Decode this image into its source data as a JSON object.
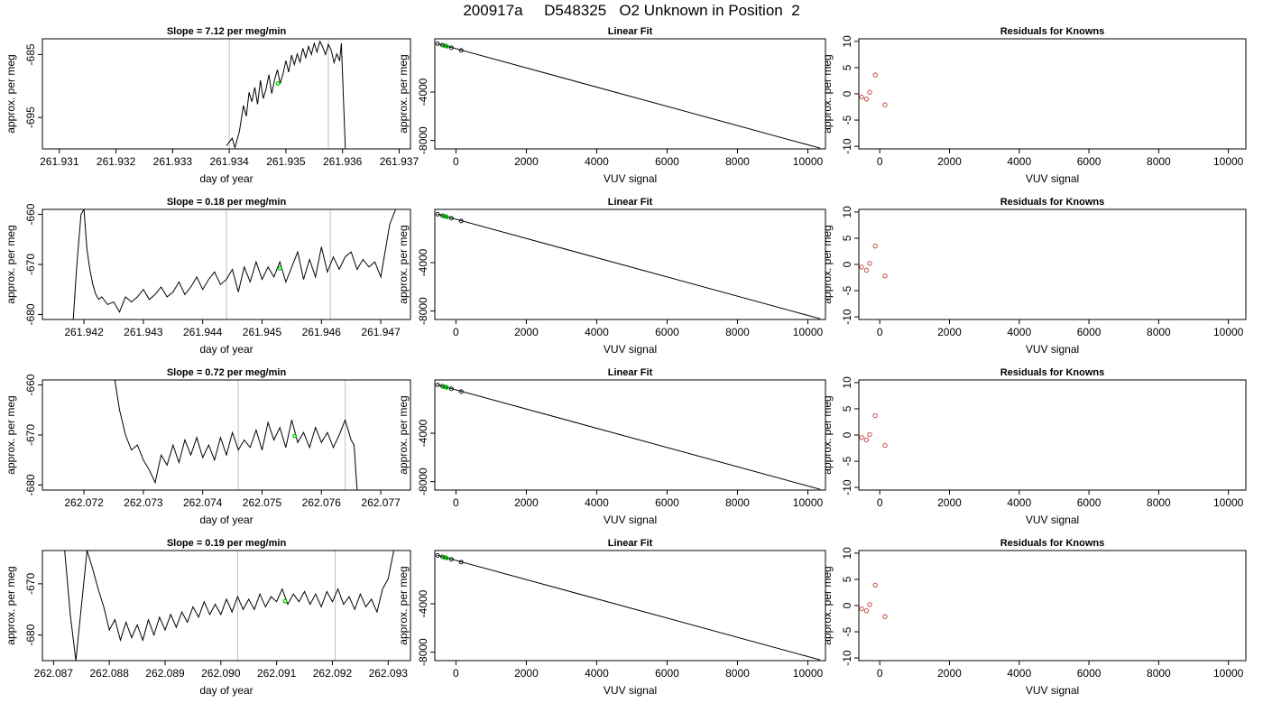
{
  "figure": {
    "title": "200917a     D548325   O2 Unknown in Position  2"
  },
  "colors": {
    "trace": "#000000",
    "marker_lines": "#bebebe",
    "highlight": "#00cc00",
    "residual_points": "#c0392b"
  },
  "chart_data": [
    {
      "type": "line",
      "row": 0,
      "col": 0,
      "title": "Slope =  7.12  per meg/min",
      "xlabel": "day of year",
      "ylabel": "approx. per meg",
      "xlim": [
        261.9307,
        261.9372
      ],
      "ylim": [
        -700,
        -682.5
      ],
      "xticks": [
        261.931,
        261.932,
        261.933,
        261.934,
        261.935,
        261.936,
        261.937
      ],
      "xtick_labels": [
        "261.931",
        "261.932",
        "261.933",
        "261.934",
        "261.935",
        "261.936",
        "261.937"
      ],
      "yticks": [
        -685,
        -695
      ],
      "ytick_labels": [
        "-685",
        "-695"
      ],
      "vlines": [
        261.934,
        261.93575
      ],
      "x": [
        261.93395,
        261.93405,
        261.9341,
        261.93418,
        261.93425,
        261.9343,
        261.93435,
        261.9344,
        261.93445,
        261.9345,
        261.93455,
        261.9346,
        261.93465,
        261.9347,
        261.93475,
        261.9348,
        261.93485,
        261.9349,
        261.93495,
        261.935,
        261.93505,
        261.9351,
        261.93515,
        261.9352,
        261.93525,
        261.9353,
        261.93535,
        261.9354,
        261.93545,
        261.9355,
        261.93555,
        261.9356,
        261.93565,
        261.9357,
        261.93575,
        261.9358,
        261.93585,
        261.9359,
        261.93595,
        261.93598,
        261.93605
      ],
      "y": [
        -699.5,
        -698.3,
        -699.8,
        -697.2,
        -693.1,
        -694.8,
        -691.0,
        -692.5,
        -690.2,
        -692.9,
        -689.1,
        -692.0,
        -690.5,
        -688.2,
        -691.2,
        -689.0,
        -687.4,
        -689.6,
        -688.0,
        -686.0,
        -687.8,
        -685.1,
        -686.6,
        -684.9,
        -686.2,
        -684.0,
        -685.5,
        -683.7,
        -685.0,
        -683.2,
        -684.6,
        -682.9,
        -683.8,
        -685.0,
        -683.4,
        -684.3,
        -686.3,
        -684.9,
        -686.0,
        -683.2,
        -700
      ],
      "highlight": {
        "x": [
          261.93486
        ],
        "y": [
          -689.6
        ]
      }
    },
    {
      "type": "line",
      "row": 0,
      "col": 1,
      "title": "Linear Fit",
      "xlabel": "VUV signal",
      "ylabel": "approx. per meg",
      "xlim": [
        -600,
        10500
      ],
      "ylim": [
        -8700,
        400
      ],
      "xticks": [
        0,
        2000,
        4000,
        6000,
        8000,
        10000
      ],
      "xtick_labels": [
        "0",
        "2000",
        "4000",
        "6000",
        "8000",
        "10000"
      ],
      "yticks": [
        -4000,
        -8000
      ],
      "ytick_labels": [
        "-4000",
        "-8000"
      ],
      "line": {
        "x": [
          -520,
          10350
        ],
        "y": [
          0,
          -8640
        ]
      },
      "points": {
        "x": [
          -520,
          -380,
          -290,
          -130,
          150
        ],
        "y": [
          -5,
          -120,
          -190,
          -330,
          -560
        ]
      },
      "highlight": {
        "x": [
          -330,
          -260
        ],
        "y": [
          -170,
          -230
        ]
      }
    },
    {
      "type": "scatter",
      "row": 0,
      "col": 2,
      "title": "Residuals for Knowns",
      "xlabel": "VUV signal",
      "ylabel": "approx. per meg",
      "xlim": [
        -600,
        10500
      ],
      "ylim": [
        -10.5,
        10.5
      ],
      "xticks": [
        0,
        2000,
        4000,
        6000,
        8000,
        10000
      ],
      "xtick_labels": [
        "0",
        "2000",
        "4000",
        "6000",
        "8000",
        "10000"
      ],
      "yticks": [
        10,
        5,
        0,
        -5,
        -10
      ],
      "ytick_labels": [
        "10",
        "5",
        "0",
        "-5",
        "-10"
      ],
      "points": {
        "x": [
          -520,
          -380,
          -290,
          -130,
          150
        ],
        "y": [
          -0.6,
          -1.0,
          0.3,
          3.6,
          -2.1
        ]
      }
    },
    {
      "type": "line",
      "row": 1,
      "col": 0,
      "title": "Slope =  0.18  per meg/min",
      "xlabel": "day of year",
      "ylabel": "approx. per meg",
      "xlim": [
        261.9413,
        261.9475
      ],
      "ylim": [
        -681,
        -659
      ],
      "xticks": [
        261.942,
        261.943,
        261.944,
        261.945,
        261.946,
        261.947
      ],
      "xtick_labels": [
        "261.942",
        "261.943",
        "261.944",
        "261.945",
        "261.946",
        "261.947"
      ],
      "yticks": [
        -660,
        -670,
        -680
      ],
      "ytick_labels": [
        "-660",
        "-670",
        "-680"
      ],
      "vlines": [
        261.9444,
        261.94615
      ],
      "x": [
        261.94182,
        261.94188,
        261.94195,
        261.942,
        261.94205,
        261.9421,
        261.94215,
        261.9422,
        261.94225,
        261.9423,
        261.9424,
        261.9425,
        261.9426,
        261.9427,
        261.9428,
        261.9429,
        261.943,
        261.9431,
        261.9432,
        261.9433,
        261.9434,
        261.9435,
        261.9436,
        261.9437,
        261.9438,
        261.9439,
        261.944,
        261.9441,
        261.9442,
        261.9443,
        261.9444,
        261.9445,
        261.9446,
        261.9447,
        261.9448,
        261.9449,
        261.945,
        261.9451,
        261.9452,
        261.9453,
        261.9454,
        261.9455,
        261.9456,
        261.9457,
        261.9458,
        261.9459,
        261.946,
        261.9461,
        261.9462,
        261.9463,
        261.9464,
        261.9465,
        261.9466,
        261.9467,
        261.9468,
        261.9469,
        261.947,
        261.94705,
        261.94715,
        261.94725
      ],
      "y": [
        -681,
        -670,
        -660,
        -659,
        -667,
        -671,
        -674,
        -676,
        -677,
        -676.5,
        -678,
        -677.5,
        -679.5,
        -676.5,
        -677.5,
        -676.5,
        -675,
        -677,
        -676,
        -674.5,
        -676.5,
        -675.5,
        -673.5,
        -676,
        -674.5,
        -672.5,
        -675,
        -673,
        -671.5,
        -674,
        -673,
        -671,
        -675.5,
        -670.5,
        -673.5,
        -669.5,
        -673,
        -670.5,
        -672.5,
        -669.5,
        -673.5,
        -670.5,
        -667.5,
        -673,
        -669,
        -672.5,
        -666.5,
        -671.5,
        -668.5,
        -671,
        -668.5,
        -667.5,
        -671,
        -669,
        -670.5,
        -669.5,
        -672.5,
        -669,
        -662,
        -659
      ],
      "highlight": {
        "x": [
          261.9453
        ],
        "y": [
          -670.8
        ]
      }
    },
    {
      "type": "line",
      "row": 1,
      "col": 1,
      "title": "Linear Fit",
      "xlabel": "VUV signal",
      "ylabel": "approx. per meg",
      "xlim": [
        -600,
        10500
      ],
      "ylim": [
        -8700,
        400
      ],
      "xticks": [
        0,
        2000,
        4000,
        6000,
        8000,
        10000
      ],
      "xtick_labels": [
        "0",
        "2000",
        "4000",
        "6000",
        "8000",
        "10000"
      ],
      "yticks": [
        -4000,
        -8000
      ],
      "ytick_labels": [
        "-4000",
        "-8000"
      ],
      "line": {
        "x": [
          -520,
          10350
        ],
        "y": [
          0,
          -8640
        ]
      },
      "points": {
        "x": [
          -520,
          -380,
          -290,
          -130,
          150
        ],
        "y": [
          -5,
          -120,
          -190,
          -330,
          -560
        ]
      },
      "highlight": {
        "x": [
          -330,
          -260
        ],
        "y": [
          -170,
          -230
        ]
      }
    },
    {
      "type": "scatter",
      "row": 1,
      "col": 2,
      "title": "Residuals for Knowns",
      "xlabel": "VUV signal",
      "ylabel": "approx. per meg",
      "xlim": [
        -600,
        10500
      ],
      "ylim": [
        -10.5,
        10.5
      ],
      "xticks": [
        0,
        2000,
        4000,
        6000,
        8000,
        10000
      ],
      "xtick_labels": [
        "0",
        "2000",
        "4000",
        "6000",
        "8000",
        "10000"
      ],
      "yticks": [
        10,
        5,
        0,
        -5,
        -10
      ],
      "ytick_labels": [
        "10",
        "5",
        "0",
        "-5",
        "-10"
      ],
      "points": {
        "x": [
          -520,
          -380,
          -290,
          -130,
          150
        ],
        "y": [
          -0.5,
          -1.1,
          0.2,
          3.5,
          -2.2
        ]
      }
    },
    {
      "type": "line",
      "row": 2,
      "col": 0,
      "title": "Slope =  0.72  per meg/min",
      "xlabel": "day of year",
      "ylabel": "approx. per meg",
      "xlim": [
        262.0713,
        262.0775
      ],
      "ylim": [
        -681,
        -659
      ],
      "xticks": [
        262.072,
        262.073,
        262.074,
        262.075,
        262.076,
        262.077
      ],
      "xtick_labels": [
        "262.072",
        "262.073",
        "262.074",
        "262.075",
        "262.076",
        "262.077"
      ],
      "yticks": [
        -660,
        -670,
        -680
      ],
      "ytick_labels": [
        "-660",
        "-670",
        "-680"
      ],
      "vlines": [
        262.0746,
        262.0764
      ],
      "x": [
        262.07252,
        262.0726,
        262.0727,
        262.0728,
        262.0729,
        262.073,
        262.0731,
        262.0732,
        262.0733,
        262.0734,
        262.0735,
        262.0736,
        262.0737,
        262.0738,
        262.0739,
        262.074,
        262.0741,
        262.0742,
        262.0743,
        262.0744,
        262.0745,
        262.0746,
        262.0747,
        262.0748,
        262.0749,
        262.075,
        262.0751,
        262.0752,
        262.0753,
        262.0754,
        262.0755,
        262.0756,
        262.0757,
        262.0758,
        262.0759,
        262.076,
        262.0761,
        262.0762,
        262.0763,
        262.0764,
        262.0765,
        262.07655,
        262.0766
      ],
      "y": [
        -659,
        -665,
        -670,
        -673,
        -672,
        -675,
        -677,
        -679.5,
        -674,
        -676,
        -672,
        -675.5,
        -671,
        -674,
        -670.5,
        -674.5,
        -672,
        -675,
        -670.5,
        -674,
        -669.5,
        -673,
        -671,
        -672.5,
        -669,
        -673,
        -667.5,
        -671,
        -668.5,
        -672.5,
        -667,
        -671.5,
        -669.5,
        -672.5,
        -668.5,
        -671.5,
        -669.5,
        -672.5,
        -670,
        -667,
        -671,
        -672,
        -681
      ],
      "highlight": {
        "x": [
          262.07555
        ],
        "y": [
          -670.2
        ]
      }
    },
    {
      "type": "line",
      "row": 2,
      "col": 1,
      "title": "Linear Fit",
      "xlabel": "VUV signal",
      "ylabel": "approx. per meg",
      "xlim": [
        -600,
        10500
      ],
      "ylim": [
        -8700,
        400
      ],
      "xticks": [
        0,
        2000,
        4000,
        6000,
        8000,
        10000
      ],
      "xtick_labels": [
        "0",
        "2000",
        "4000",
        "6000",
        "8000",
        "10000"
      ],
      "yticks": [
        -4000,
        -8000
      ],
      "ytick_labels": [
        "-4000",
        "-8000"
      ],
      "line": {
        "x": [
          -520,
          10350
        ],
        "y": [
          0,
          -8640
        ]
      },
      "points": {
        "x": [
          -520,
          -380,
          -290,
          -130,
          150
        ],
        "y": [
          -5,
          -120,
          -190,
          -330,
          -560
        ]
      },
      "highlight": {
        "x": [
          -330,
          -260
        ],
        "y": [
          -170,
          -230
        ]
      }
    },
    {
      "type": "scatter",
      "row": 2,
      "col": 2,
      "title": "Residuals for Knowns",
      "xlabel": "VUV signal",
      "ylabel": "approx. per meg",
      "xlim": [
        -600,
        10500
      ],
      "ylim": [
        -10.5,
        10.5
      ],
      "xticks": [
        0,
        2000,
        4000,
        6000,
        8000,
        10000
      ],
      "xtick_labels": [
        "0",
        "2000",
        "4000",
        "6000",
        "8000",
        "10000"
      ],
      "yticks": [
        10,
        5,
        0,
        -5,
        -10
      ],
      "ytick_labels": [
        "10",
        "5",
        "0",
        "-5",
        "-10"
      ],
      "points": {
        "x": [
          -520,
          -380,
          -290,
          -130,
          150
        ],
        "y": [
          -0.5,
          -0.9,
          0.1,
          3.7,
          -2.0
        ]
      }
    },
    {
      "type": "line",
      "row": 3,
      "col": 0,
      "title": "Slope =  0.19  per meg/min",
      "xlabel": "day of year",
      "ylabel": "approx. per meg",
      "xlim": [
        262.0868,
        262.0934
      ],
      "ylim": [
        -685,
        -663.5
      ],
      "xticks": [
        262.087,
        262.088,
        262.089,
        262.09,
        262.091,
        262.092,
        262.093
      ],
      "xtick_labels": [
        "262.087",
        "262.088",
        "262.089",
        "262.090",
        "262.091",
        "262.092",
        "262.093"
      ],
      "yticks": [
        -670,
        -680
      ],
      "ytick_labels": [
        "-670",
        "-680"
      ],
      "vlines": [
        262.0903,
        262.09205
      ],
      "x": [
        262.0872,
        262.0873,
        262.0874,
        262.0876,
        262.0877,
        262.0878,
        262.0879,
        262.088,
        262.0881,
        262.0882,
        262.0883,
        262.0884,
        262.0885,
        262.0886,
        262.0887,
        262.0888,
        262.0889,
        262.089,
        262.0891,
        262.0892,
        262.0893,
        262.0894,
        262.0895,
        262.0896,
        262.0897,
        262.0898,
        262.0899,
        262.09,
        262.0901,
        262.0902,
        262.0903,
        262.0904,
        262.0905,
        262.0906,
        262.0907,
        262.0908,
        262.0909,
        262.091,
        262.0911,
        262.0912,
        262.0913,
        262.0914,
        262.0915,
        262.0916,
        262.0917,
        262.0918,
        262.0919,
        262.092,
        262.0921,
        262.0922,
        262.0923,
        262.0924,
        262.0925,
        262.0926,
        262.0927,
        262.0928,
        262.0929,
        262.093,
        262.0931
      ],
      "y": [
        -663.5,
        -676,
        -685,
        -663.5,
        -667,
        -671,
        -674.5,
        -679,
        -677,
        -681,
        -677.5,
        -680.5,
        -678,
        -681,
        -677,
        -680,
        -676.5,
        -679,
        -676,
        -678.5,
        -675.5,
        -677.5,
        -674.5,
        -676.5,
        -673.5,
        -676,
        -674,
        -676,
        -673,
        -675.5,
        -672.5,
        -675,
        -673,
        -675,
        -672,
        -674.5,
        -672.5,
        -673.5,
        -671,
        -674,
        -672,
        -673.5,
        -671.5,
        -674,
        -672,
        -674.5,
        -671.5,
        -673.5,
        -671,
        -674,
        -672.5,
        -675,
        -672,
        -674.5,
        -673,
        -675.5,
        -671,
        -669,
        -663.5
      ],
      "highlight": {
        "x": [
          262.09115
        ],
        "y": [
          -673.4
        ]
      }
    },
    {
      "type": "line",
      "row": 3,
      "col": 1,
      "title": "Linear Fit",
      "xlabel": "VUV signal",
      "ylabel": "approx. per meg",
      "xlim": [
        -600,
        10500
      ],
      "ylim": [
        -8700,
        400
      ],
      "xticks": [
        0,
        2000,
        4000,
        6000,
        8000,
        10000
      ],
      "xtick_labels": [
        "0",
        "2000",
        "4000",
        "6000",
        "8000",
        "10000"
      ],
      "yticks": [
        -4000,
        -8000
      ],
      "ytick_labels": [
        "-4000",
        "-8000"
      ],
      "line": {
        "x": [
          -520,
          10350
        ],
        "y": [
          0,
          -8640
        ]
      },
      "points": {
        "x": [
          -520,
          -380,
          -290,
          -130,
          150
        ],
        "y": [
          -5,
          -120,
          -190,
          -330,
          -560
        ]
      },
      "highlight": {
        "x": [
          -330,
          -260
        ],
        "y": [
          -170,
          -230
        ]
      }
    },
    {
      "type": "scatter",
      "row": 3,
      "col": 2,
      "title": "Residuals for Knowns",
      "xlabel": "VUV signal",
      "ylabel": "approx. per meg",
      "xlim": [
        -600,
        10500
      ],
      "ylim": [
        -10.5,
        10.5
      ],
      "xticks": [
        0,
        2000,
        4000,
        6000,
        8000,
        10000
      ],
      "xtick_labels": [
        "0",
        "2000",
        "4000",
        "6000",
        "8000",
        "10000"
      ],
      "yticks": [
        10,
        5,
        0,
        -5,
        -10
      ],
      "ytick_labels": [
        "10",
        "5",
        "0",
        "-5",
        "-10"
      ],
      "points": {
        "x": [
          -520,
          -380,
          -290,
          -130,
          150
        ],
        "y": [
          -0.6,
          -1.0,
          0.2,
          3.9,
          -2.1
        ]
      }
    }
  ]
}
